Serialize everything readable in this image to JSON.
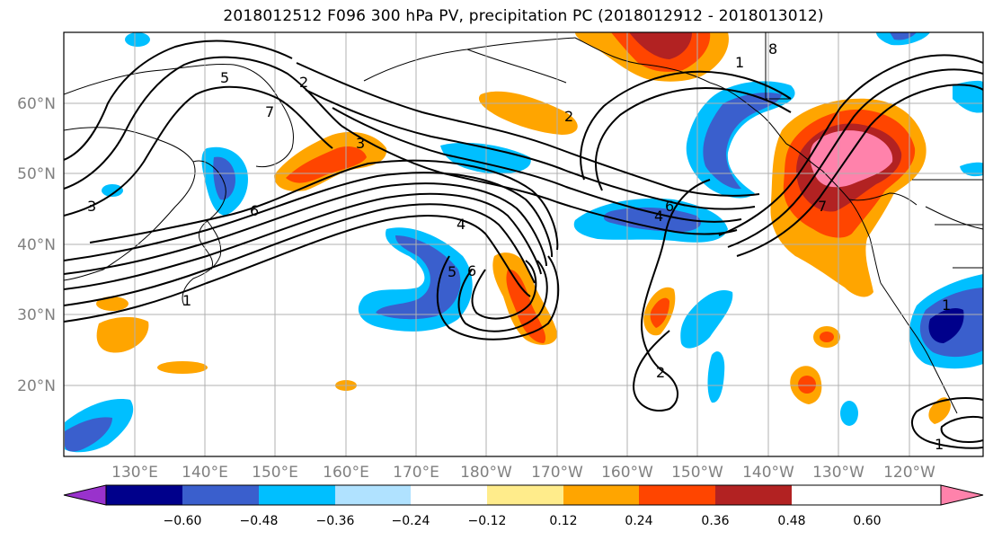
{
  "title": "2018012512 F096 300 hPa PV, precipitation PC (2018012912 - 2018013012)",
  "lat_labels": [
    "60°N",
    "50°N",
    "40°N",
    "30°N",
    "20°N"
  ],
  "lon_labels": [
    "130°E",
    "140°E",
    "150°E",
    "160°E",
    "170°E",
    "180°W",
    "170°W",
    "160°W",
    "150°W",
    "140°W",
    "130°W",
    "120°W"
  ],
  "colorbar": {
    "colors": [
      "#9932cc",
      "#00008b",
      "#3a5fcd",
      "#00bfff",
      "#b0e2ff",
      "#ffffff",
      "#ffec8b",
      "#ffa500",
      "#ff4500",
      "#b22222",
      "#ff82ab"
    ],
    "labels": [
      "−0.60",
      "−0.48",
      "−0.36",
      "−0.24",
      "−0.12",
      "0.12",
      "0.24",
      "0.36",
      "0.48",
      "0.60"
    ]
  },
  "contour_labels": [
    "5",
    "2",
    "7",
    "3",
    "6",
    "3",
    "4",
    "5",
    "6",
    "1",
    "2",
    "4",
    "6",
    "1",
    "8",
    "7",
    "1",
    "2",
    "1"
  ]
}
